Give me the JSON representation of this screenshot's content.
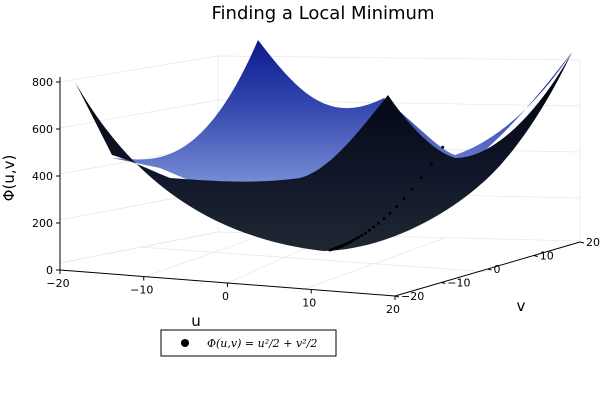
{
  "chart_data": {
    "type": "surface",
    "title": "Finding a Local Minimum",
    "xlabel": "u",
    "ylabel": "v",
    "zlabel": "Φ(u,v)",
    "x_range": [
      -20,
      20
    ],
    "y_range": [
      -20,
      20
    ],
    "z_range": [
      0,
      800
    ],
    "x_ticks": [
      -20,
      -10,
      0,
      10,
      20
    ],
    "y_ticks": [
      -20,
      -10,
      0,
      10,
      20
    ],
    "z_ticks": [
      0,
      200,
      400,
      600,
      800
    ],
    "x_tick_labels": [
      "−20",
      "−10",
      "0",
      "10",
      "20"
    ],
    "y_tick_labels": [
      "−20",
      "−10",
      "0",
      "10",
      "20"
    ],
    "z_tick_labels": [
      "0",
      "200",
      "400",
      "600",
      "800"
    ],
    "surface": {
      "function": "u^2/2 + v^2/2",
      "colormap": [
        "#1b2430",
        "#050a1a",
        "#0a1a8a",
        "#7a90d8"
      ]
    },
    "series": [
      {
        "name": "Φ(u,v) = u²/2 + v²/2",
        "points": [
          {
            "u": 0,
            "v": 24.5,
            "phi": 300.1
          },
          {
            "u": 0,
            "v": 22.05,
            "phi": 243.1
          },
          {
            "u": 0,
            "v": 19.85,
            "phi": 196.9
          },
          {
            "u": 0,
            "v": 17.86,
            "phi": 159.5
          },
          {
            "u": 0,
            "v": 16.07,
            "phi": 129.2
          },
          {
            "u": 0,
            "v": 14.47,
            "phi": 104.6
          },
          {
            "u": 0,
            "v": 13.02,
            "phi": 84.7
          },
          {
            "u": 0,
            "v": 11.72,
            "phi": 68.6
          },
          {
            "u": 0,
            "v": 10.55,
            "phi": 55.6
          },
          {
            "u": 0,
            "v": 9.49,
            "phi": 45.0
          },
          {
            "u": 0,
            "v": 8.54,
            "phi": 36.5
          },
          {
            "u": 0,
            "v": 7.69,
            "phi": 29.5
          },
          {
            "u": 0,
            "v": 6.92,
            "phi": 23.9
          },
          {
            "u": 0,
            "v": 6.23,
            "phi": 19.4
          },
          {
            "u": 0,
            "v": 5.6,
            "phi": 15.7
          },
          {
            "u": 0,
            "v": 5.04,
            "phi": 12.7
          },
          {
            "u": 0,
            "v": 4.54,
            "phi": 10.3
          },
          {
            "u": 0,
            "v": 4.09,
            "phi": 8.3
          },
          {
            "u": 0,
            "v": 3.68,
            "phi": 6.8
          },
          {
            "u": 0,
            "v": 3.31,
            "phi": 5.5
          },
          {
            "u": 0,
            "v": 2.98,
            "phi": 4.4
          },
          {
            "u": 0,
            "v": 2.68,
            "phi": 3.6
          },
          {
            "u": 0,
            "v": 2.41,
            "phi": 2.9
          },
          {
            "u": 0,
            "v": 2.17,
            "phi": 2.4
          },
          {
            "u": 0,
            "v": 1.95,
            "phi": 1.9
          },
          {
            "u": 0,
            "v": 1.76,
            "phi": 1.5
          },
          {
            "u": 0,
            "v": 1.58,
            "phi": 1.2
          },
          {
            "u": 0,
            "v": 1.42,
            "phi": 1.0
          },
          {
            "u": 0,
            "v": 1.28,
            "phi": 0.8
          },
          {
            "u": 0,
            "v": 1.15,
            "phi": 0.7
          },
          {
            "u": 0,
            "v": 0.8,
            "phi": 0.3
          },
          {
            "u": 0,
            "v": 0.4,
            "phi": 0.1
          },
          {
            "u": 0,
            "v": 0.0,
            "phi": 0.0
          }
        ]
      }
    ],
    "legend": {
      "position": "bottom-left"
    }
  }
}
